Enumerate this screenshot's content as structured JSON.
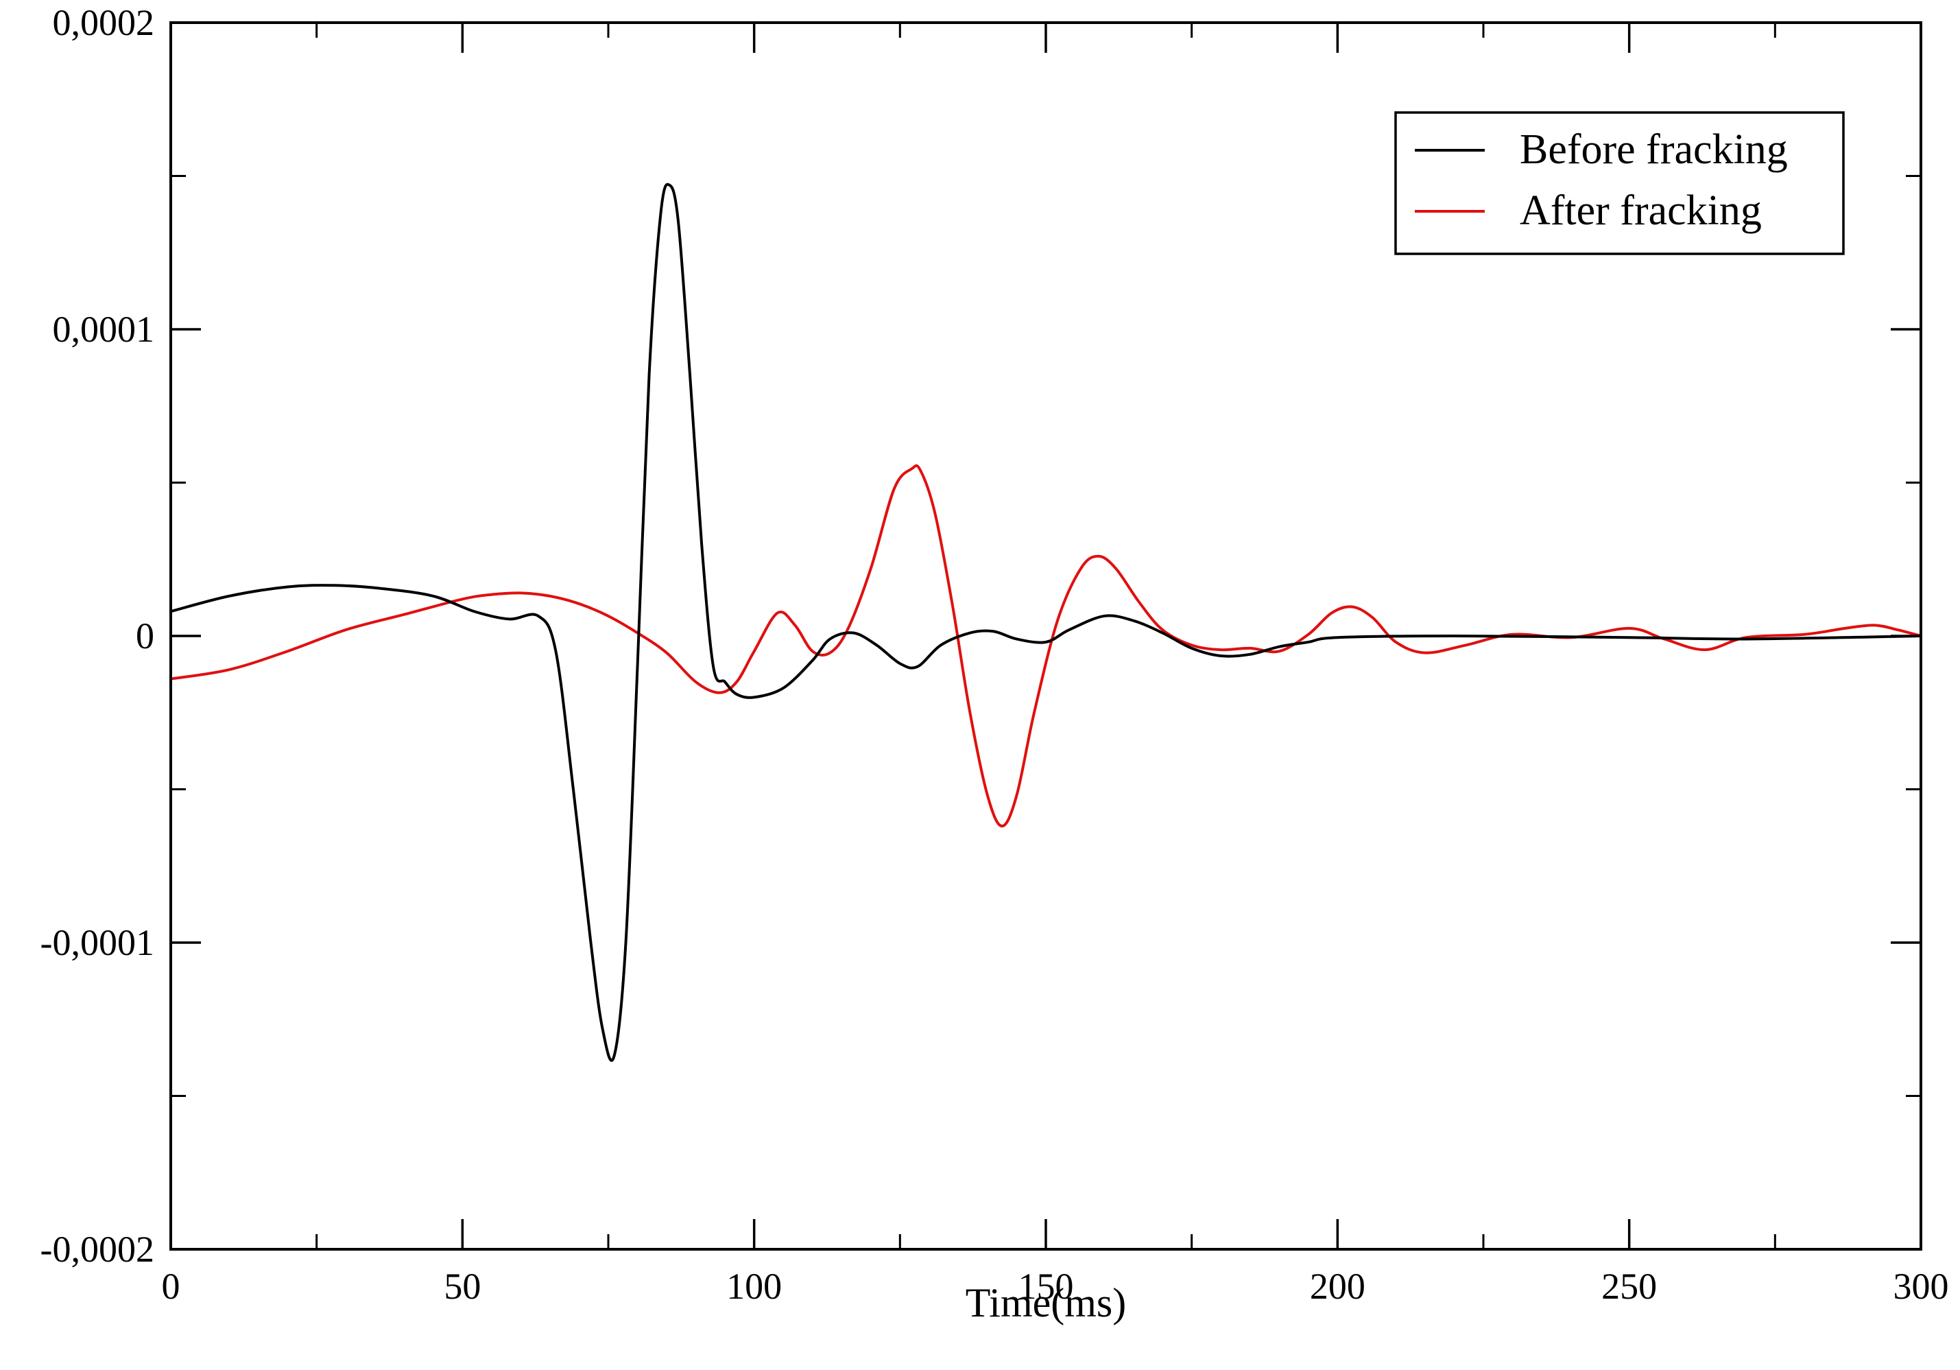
{
  "chart_data": {
    "type": "line",
    "title": "",
    "xlabel": "Time(ms)",
    "ylabel": "",
    "xlim": [
      0,
      300
    ],
    "ylim": [
      -0.0002,
      0.0002
    ],
    "x_ticks": [
      0,
      50,
      100,
      150,
      200,
      250,
      300
    ],
    "x_tick_labels": [
      "0",
      "50",
      "100",
      "150",
      "200",
      "250",
      "300"
    ],
    "y_ticks": [
      -0.0002,
      -0.0001,
      0,
      0.0001,
      0.0002
    ],
    "y_tick_labels": [
      "-0,0002",
      "-0,0001",
      "0",
      "0,0001",
      "0,0002"
    ],
    "grid": false,
    "legend_position": "top-right",
    "series": [
      {
        "name": "Before fracking",
        "color": "#000000",
        "x": [
          0,
          10,
          20,
          28,
          36,
          45,
          52,
          58,
          63,
          66,
          69,
          72,
          74,
          76,
          78,
          80,
          82,
          84,
          85.5,
          87,
          89,
          91,
          93,
          95,
          97,
          100,
          105,
          110,
          113,
          117,
          121,
          125,
          128,
          132,
          137,
          141,
          145,
          150,
          154,
          160,
          165,
          170,
          175,
          180,
          185,
          190,
          195,
          200,
          220,
          250,
          270,
          300
        ],
        "y": [
          8e-06,
          1.3e-05,
          1.6e-05,
          1.65e-05,
          1.55e-05,
          1.3e-05,
          8e-06,
          5.5e-06,
          6.5e-06,
          -5e-06,
          -5e-05,
          -0.0001,
          -0.000128,
          -0.000137,
          -0.0001,
          -1e-05,
          8.5e-05,
          0.000138,
          0.000147,
          0.000135,
          8.5e-05,
          3e-05,
          -1e-05,
          -1.5e-05,
          -1.9e-05,
          -2e-05,
          -1.7e-05,
          -8e-06,
          -1e-06,
          1e-06,
          -3e-06,
          -9e-06,
          -1e-05,
          -3e-06,
          1e-06,
          1.5e-06,
          -1e-06,
          -2e-06,
          2e-06,
          6.5e-06,
          5e-06,
          1e-06,
          -4e-06,
          -6.5e-06,
          -6e-06,
          -3.5e-06,
          -2e-06,
          -5e-07,
          0,
          -5e-07,
          -1e-06,
          0
        ]
      },
      {
        "name": "After fracking",
        "color": "#e01010",
        "x": [
          0,
          10,
          20,
          30,
          40,
          50,
          55,
          60,
          65,
          70,
          75,
          80,
          85,
          90,
          94,
          97,
          100,
          104,
          107,
          110,
          113,
          116,
          120,
          124,
          127,
          128.5,
          131,
          134,
          137,
          140,
          142.5,
          145,
          148,
          152,
          156,
          159,
          162,
          166,
          170,
          175,
          180,
          185,
          190,
          195,
          199,
          202.5,
          206,
          210,
          215,
          222,
          230,
          240,
          250,
          256,
          263,
          270,
          280,
          287,
          292,
          296,
          300
        ],
        "y": [
          -1.4e-05,
          -1.1e-05,
          -5e-06,
          2e-06,
          7e-06,
          1.2e-05,
          1.35e-05,
          1.4e-05,
          1.3e-05,
          1.05e-05,
          6.5e-06,
          1e-06,
          -5.5e-06,
          -1.5e-05,
          -1.85e-05,
          -1.5e-05,
          -5e-06,
          7.5e-06,
          3.5e-06,
          -5e-06,
          -5.5e-06,
          2e-06,
          2.2e-05,
          4.8e-05,
          5.45e-05,
          5.4e-05,
          4e-05,
          1e-05,
          -2.5e-05,
          -5.2e-05,
          -6.2e-05,
          -5.2e-05,
          -2.5e-05,
          5e-06,
          2.2e-05,
          2.6e-05,
          2.2e-05,
          1.1e-05,
          2e-06,
          -3e-06,
          -4.5e-06,
          -4e-06,
          -5e-06,
          5e-07,
          7.5e-06,
          9.5e-06,
          6e-06,
          -2e-06,
          -5.5e-06,
          -3e-06,
          5e-07,
          -5e-07,
          2.5e-06,
          -1e-06,
          -4.5e-06,
          -5e-07,
          5e-07,
          2.5e-06,
          3.5e-06,
          2e-06,
          0
        ]
      }
    ]
  }
}
